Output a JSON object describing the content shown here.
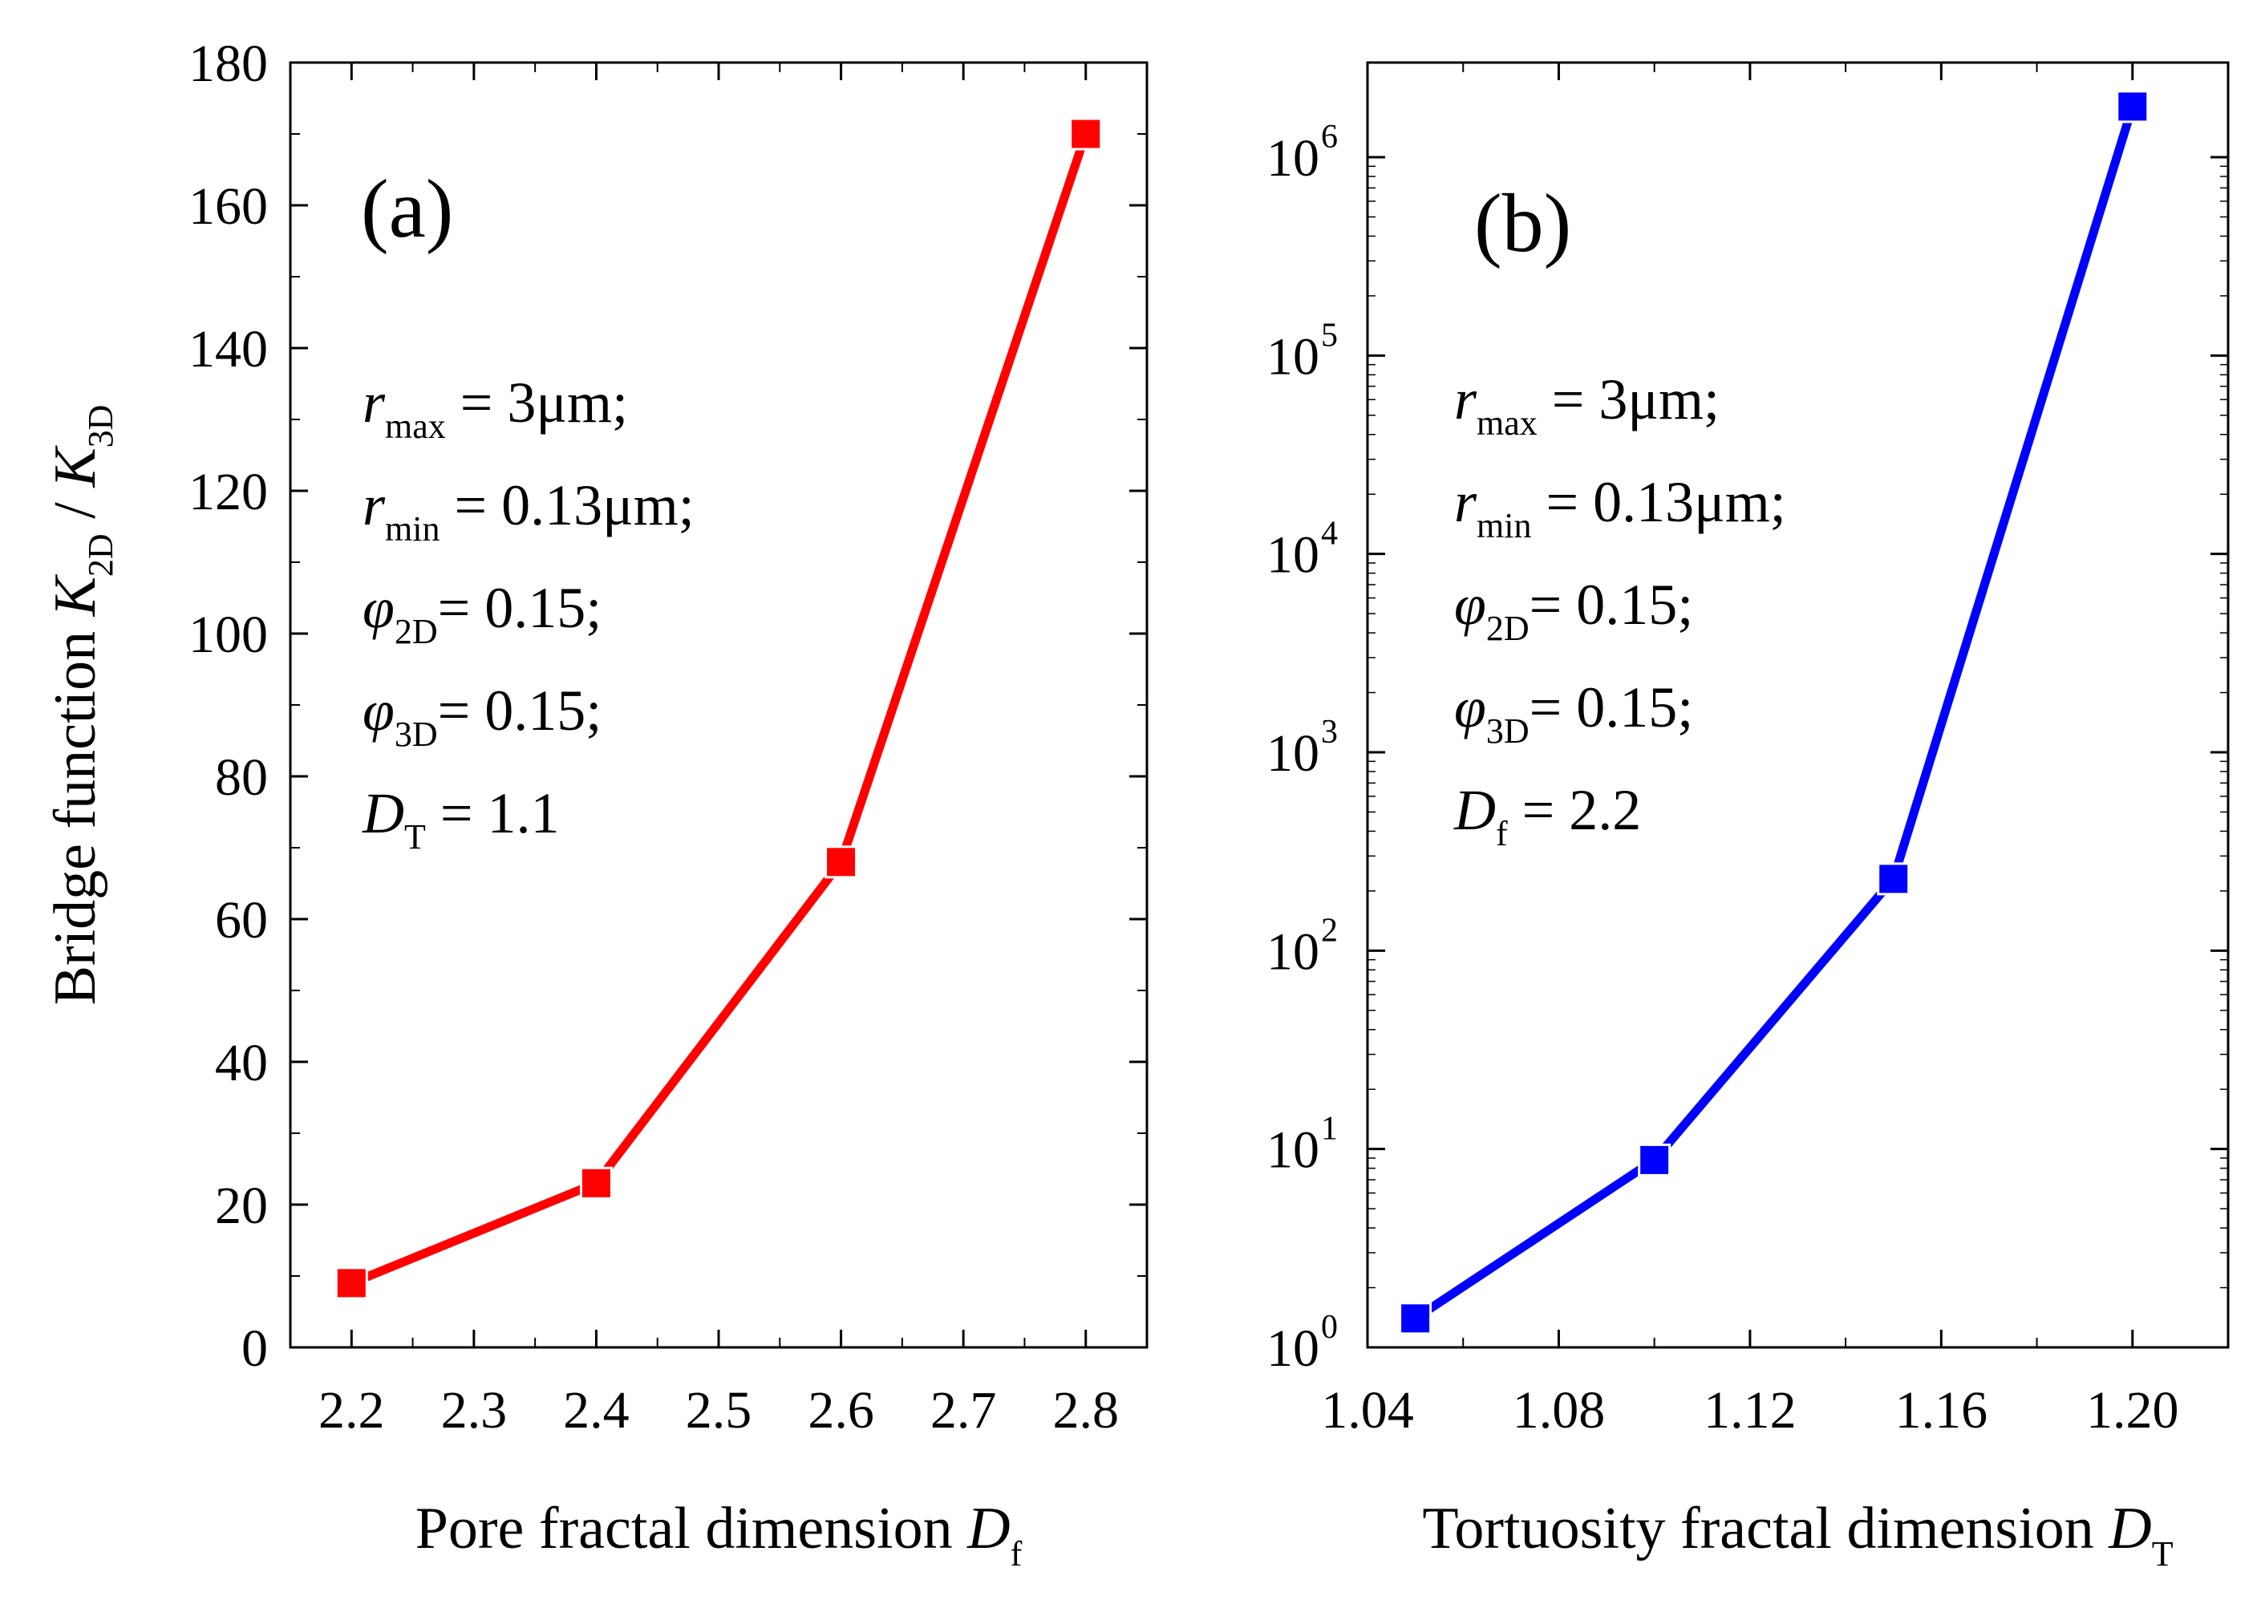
{
  "chart_data": [
    {
      "type": "line",
      "panel_label": "(a)",
      "x": [
        2.2,
        2.4,
        2.6,
        2.8
      ],
      "values": [
        9,
        23,
        68,
        170
      ],
      "color": "#ff0000",
      "xlim": [
        2.15,
        2.85
      ],
      "ylim": [
        0,
        180
      ],
      "xticks": [
        "2.2",
        "2.3",
        "2.4",
        "2.5",
        "2.6",
        "2.7",
        "2.8"
      ],
      "yticks": [
        "0",
        "20",
        "40",
        "60",
        "80",
        "100",
        "120",
        "140",
        "160",
        "180"
      ],
      "xlabel": {
        "main": "Pore fractal dimension ",
        "var": "D",
        "sub": "f"
      },
      "ylabel": {
        "prefix": "Bridge function ",
        "v1": "K",
        "s1": "2D",
        "mid": " / ",
        "v2": "K",
        "s2": "3D"
      },
      "annotations": [
        {
          "var": "r",
          "sub": "max",
          "rest": " = 3μm;"
        },
        {
          "var": "r",
          "sub": "min",
          "rest": " = 0.13μm;"
        },
        {
          "var": "φ",
          "sub": "2D",
          "rest": "= 0.15;"
        },
        {
          "var": "φ",
          "sub": "3D",
          "rest": "= 0.15;"
        },
        {
          "var": "D",
          "sub": "T",
          "rest": " = 1.1"
        }
      ]
    },
    {
      "type": "line",
      "panel_label": "(b)",
      "yscale": "log",
      "x": [
        1.05,
        1.1,
        1.15,
        1.2
      ],
      "values": [
        1.4,
        8.8,
        230,
        1800000
      ],
      "color": "#0000ff",
      "xlim": [
        1.04,
        1.22
      ],
      "ylim": [
        1,
        3000000
      ],
      "xticks": [
        "1.04",
        "1.08",
        "1.12",
        "1.16",
        "1.20"
      ],
      "yticks": [
        {
          "base": "10",
          "exp": "0"
        },
        {
          "base": "10",
          "exp": "1"
        },
        {
          "base": "10",
          "exp": "2"
        },
        {
          "base": "10",
          "exp": "3"
        },
        {
          "base": "10",
          "exp": "4"
        },
        {
          "base": "10",
          "exp": "5"
        },
        {
          "base": "10",
          "exp": "6"
        }
      ],
      "xlabel": {
        "main": "Tortuosity fractal dimension ",
        "var": "D",
        "sub": "T"
      },
      "annotations": [
        {
          "var": "r",
          "sub": "max",
          "rest": " = 3μm;"
        },
        {
          "var": "r",
          "sub": "min",
          "rest": " = 0.13μm;"
        },
        {
          "var": "φ",
          "sub": "2D",
          "rest": "= 0.15;"
        },
        {
          "var": "φ",
          "sub": "3D",
          "rest": "= 0.15;"
        },
        {
          "var": "D",
          "sub": "f",
          "rest": " = 2.2"
        }
      ]
    }
  ]
}
